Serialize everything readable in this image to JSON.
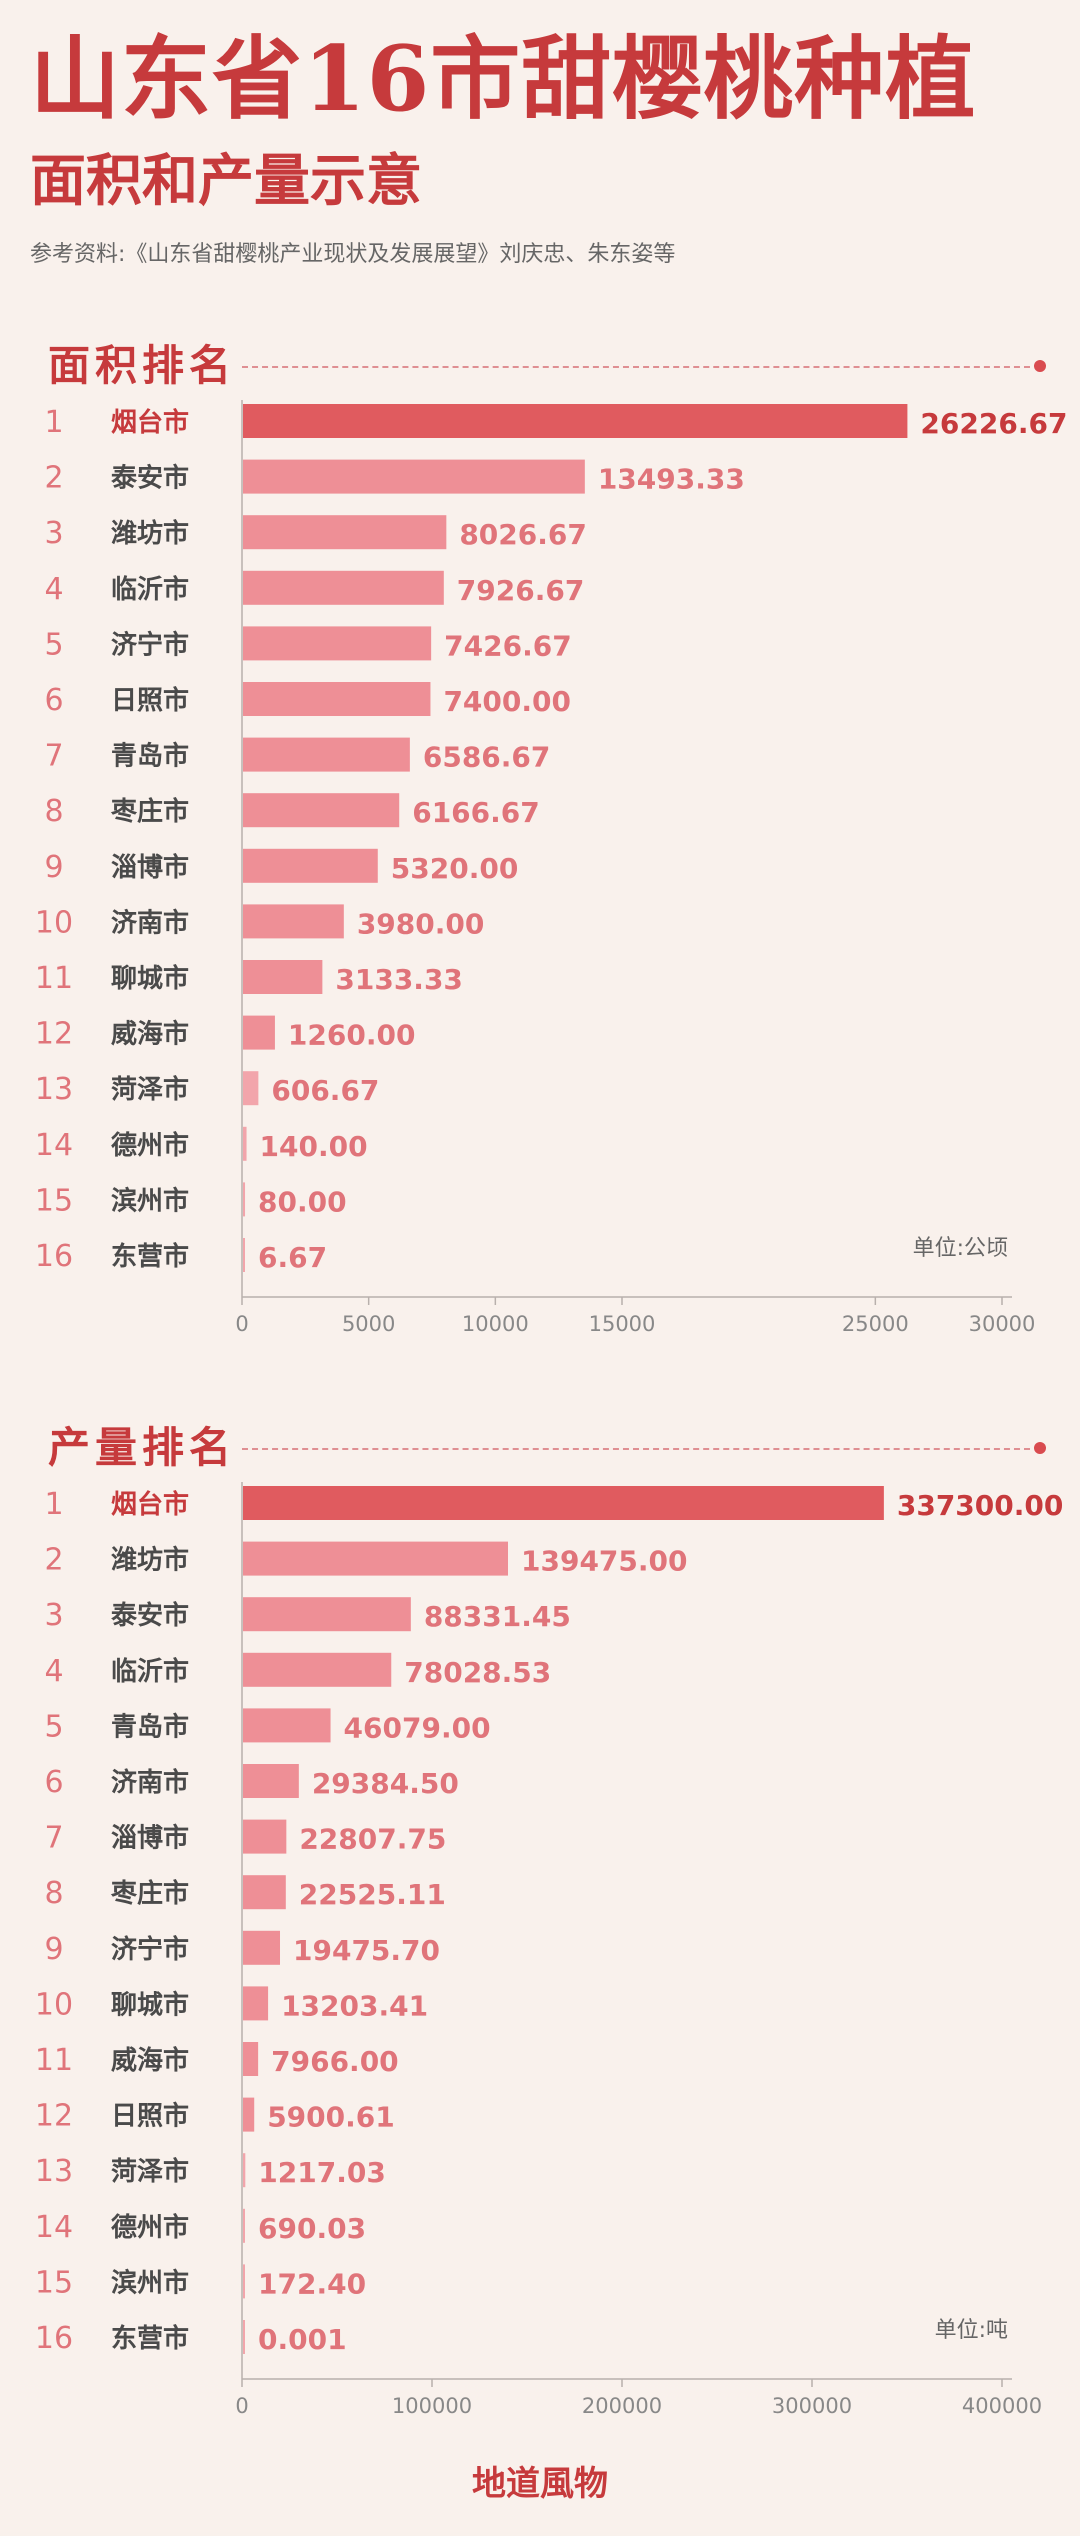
{
  "header": {
    "title": "山东省16市甜樱桃种植",
    "subtitle": "面积和产量示意",
    "source": "参考资料:《山东省甜樱桃产业现状及发展展望》刘庆忠、朱东姿等"
  },
  "sections": {
    "area": {
      "heading": "面积排名",
      "unit": "单位:公顷"
    },
    "output": {
      "heading": "产量排名",
      "unit": "单位:吨"
    }
  },
  "footer": {
    "brand": "地道風物"
  },
  "colors": {
    "accent": "#c63a3c",
    "top_bar": "#e05b5f",
    "bar": "#ee8f96",
    "bar_light": "#f2a5ab",
    "rank": "#e0747a",
    "background": "#f9f1ec"
  },
  "chart_data": [
    {
      "type": "bar",
      "orientation": "horizontal",
      "title": "面积排名",
      "unit": "单位:公顷",
      "ranks": [
        "1",
        "2",
        "3",
        "4",
        "5",
        "6",
        "7",
        "8",
        "9",
        "10",
        "11",
        "12",
        "13",
        "14",
        "15",
        "16"
      ],
      "categories": [
        "烟台市",
        "泰安市",
        "潍坊市",
        "临沂市",
        "济宁市",
        "日照市",
        "青岛市",
        "枣庄市",
        "淄博市",
        "济南市",
        "聊城市",
        "威海市",
        "菏泽市",
        "德州市",
        "滨州市",
        "东营市"
      ],
      "values": [
        26226.67,
        13493.33,
        8026.67,
        7926.67,
        7426.67,
        7400.0,
        6586.67,
        6166.67,
        5320.0,
        3980.0,
        3133.33,
        1260.0,
        606.67,
        140.0,
        80.0,
        6.67
      ],
      "value_labels": [
        "26226.67",
        "13493.33",
        "8026.67",
        "7926.67",
        "7426.67",
        "7400.00",
        "6586.67",
        "6166.67",
        "5320.00",
        "3980.00",
        "3133.33",
        "1260.00",
        "606.67",
        "140.00",
        "80.00",
        "6.67"
      ],
      "xlim": [
        0,
        30000
      ],
      "xticks": [
        0,
        5000,
        10000,
        15000,
        25000,
        30000
      ],
      "xtick_labels": [
        "0",
        "5000",
        "10000",
        "15000",
        "25000",
        "30000"
      ],
      "grid": false
    },
    {
      "type": "bar",
      "orientation": "horizontal",
      "title": "产量排名",
      "unit": "单位:吨",
      "ranks": [
        "1",
        "2",
        "3",
        "4",
        "5",
        "6",
        "7",
        "8",
        "9",
        "10",
        "11",
        "12",
        "13",
        "14",
        "15",
        "16"
      ],
      "categories": [
        "烟台市",
        "潍坊市",
        "泰安市",
        "临沂市",
        "青岛市",
        "济南市",
        "淄博市",
        "枣庄市",
        "济宁市",
        "聊城市",
        "威海市",
        "日照市",
        "菏泽市",
        "德州市",
        "滨州市",
        "东营市"
      ],
      "values": [
        337300.0,
        139475.0,
        88331.45,
        78028.53,
        46079.0,
        29384.5,
        22807.75,
        22525.11,
        19475.7,
        13203.41,
        7966.0,
        5900.61,
        1217.03,
        690.03,
        172.4,
        0.001
      ],
      "value_labels": [
        "337300.00",
        "139475.00",
        "88331.45",
        "78028.53",
        "46079.00",
        "29384.50",
        "22807.75",
        "22525.11",
        "19475.70",
        "13203.41",
        "7966.00",
        "5900.61",
        "1217.03",
        "690.03",
        "172.40",
        "0.001"
      ],
      "xlim": [
        0,
        400000
      ],
      "xticks": [
        0,
        100000,
        200000,
        300000,
        400000
      ],
      "xtick_labels": [
        "0",
        "100000",
        "200000",
        "300000",
        "400000"
      ],
      "grid": false
    }
  ]
}
